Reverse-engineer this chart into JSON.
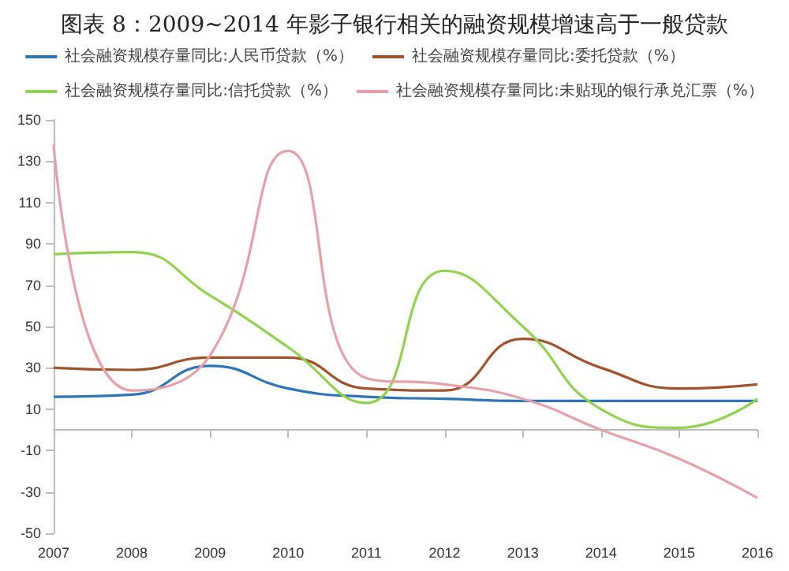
{
  "chart_data": {
    "type": "line",
    "title": "图表 8：2009~2014 年影子银行相关的融资规模增速高于一般贷款",
    "categories": [
      "2007",
      "2008",
      "2009",
      "2010",
      "2011",
      "2012",
      "2013",
      "2014",
      "2015",
      "2016"
    ],
    "series": [
      {
        "name": "社会融资规模存量同比:人民币贷款（%）",
        "color": "#2e75b6",
        "values": [
          16,
          17,
          31,
          20,
          16,
          15,
          14,
          14,
          14,
          14
        ]
      },
      {
        "name": "社会融资规模存量同比:委托贷款（%）",
        "color": "#a0522d",
        "values": [
          30,
          29,
          35,
          35,
          20,
          19,
          44,
          30,
          20,
          22
        ]
      },
      {
        "name": "社会融资规模存量同比:信托贷款（%）",
        "color": "#92d050",
        "values": [
          85,
          86,
          65,
          40,
          13,
          77,
          50,
          10,
          1,
          15
        ]
      },
      {
        "name": "社会融资规模存量同比:未贴现的银行承兑汇票（%）",
        "color": "#e6a0a8",
        "values": [
          138,
          19,
          36,
          135,
          25,
          22,
          15,
          0,
          -14,
          -33
        ]
      }
    ],
    "ylim": [
      -50,
      150
    ],
    "yticks": [
      -50,
      -30,
      -10,
      10,
      30,
      50,
      70,
      90,
      110,
      130,
      150
    ],
    "grid": false,
    "legend": "top",
    "marker": "none",
    "line_style": "solid"
  }
}
